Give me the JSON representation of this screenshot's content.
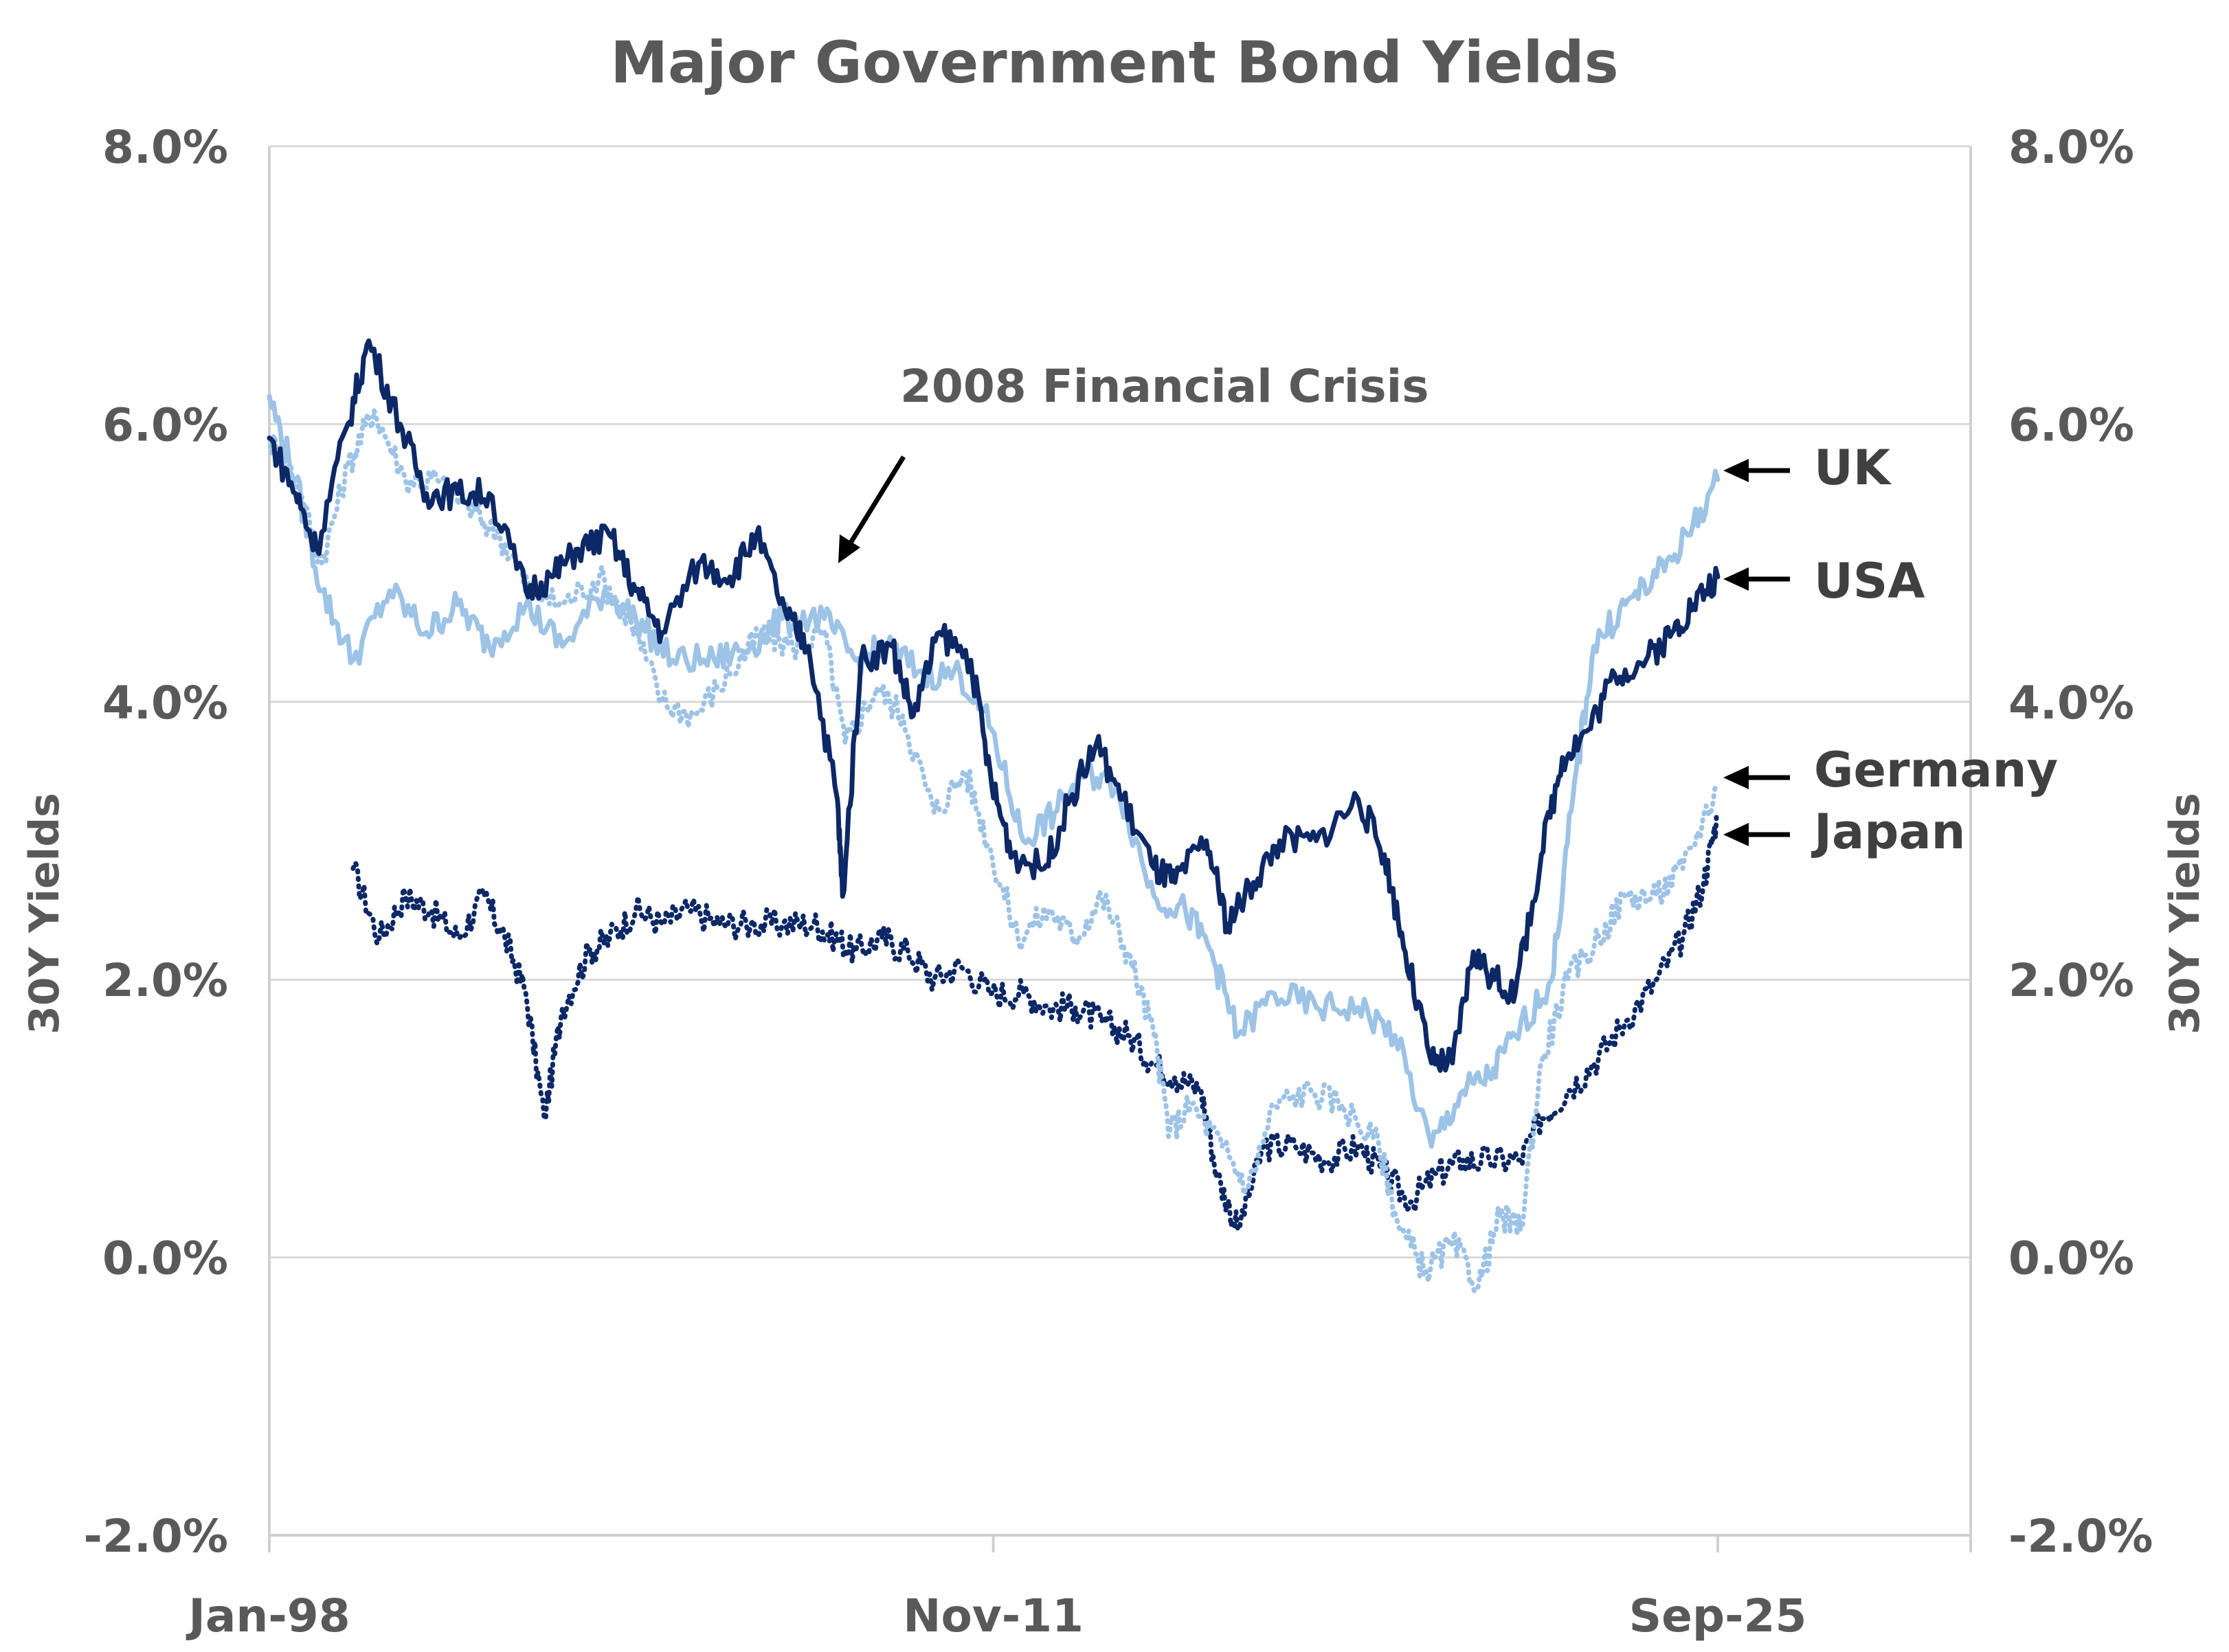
{
  "chart_data": {
    "type": "line",
    "title": "Major Government Bond Yields",
    "ylabel_left": "30Y  Yields",
    "ylabel_right": "30Y  Yields",
    "ylim": [
      -2.0,
      8.0
    ],
    "yticks": [
      "-2.0%",
      "0.0%",
      "2.0%",
      "4.0%",
      "6.0%",
      "8.0%"
    ],
    "xtick_labels": [
      "Jan-98",
      "Nov-11",
      "Sep-25"
    ],
    "xtick_values": [
      1998.0,
      2011.83,
      2025.67
    ],
    "xlim": [
      1998.0,
      2030.5
    ],
    "annotation": "2008 Financial Crisis",
    "series": [
      {
        "name": "UK",
        "style": "solid",
        "color": "#9dc3e6",
        "points": [
          [
            1998.0,
            6.2
          ],
          [
            1998.5,
            5.6
          ],
          [
            1999.0,
            4.8
          ],
          [
            1999.6,
            4.3
          ],
          [
            2000.3,
            4.8
          ],
          [
            2001.0,
            4.5
          ],
          [
            2001.6,
            4.7
          ],
          [
            2002.2,
            4.4
          ],
          [
            2002.9,
            4.7
          ],
          [
            2003.6,
            4.4
          ],
          [
            2004.4,
            4.8
          ],
          [
            2005.0,
            4.6
          ],
          [
            2005.7,
            4.3
          ],
          [
            2006.5,
            4.3
          ],
          [
            2007.2,
            4.4
          ],
          [
            2007.8,
            4.6
          ],
          [
            2008.6,
            4.6
          ],
          [
            2009.2,
            4.3
          ],
          [
            2009.8,
            4.4
          ],
          [
            2010.5,
            4.2
          ],
          [
            2011.2,
            4.2
          ],
          [
            2011.8,
            3.8
          ],
          [
            2012.4,
            3.0
          ],
          [
            2013.0,
            3.2
          ],
          [
            2013.6,
            3.5
          ],
          [
            2014.2,
            3.4
          ],
          [
            2014.9,
            2.6
          ],
          [
            2015.5,
            2.5
          ],
          [
            2016.0,
            2.2
          ],
          [
            2016.5,
            1.6
          ],
          [
            2017.2,
            1.9
          ],
          [
            2018.0,
            1.8
          ],
          [
            2018.8,
            1.8
          ],
          [
            2019.5,
            1.6
          ],
          [
            2020.2,
            0.8
          ],
          [
            2020.8,
            1.2
          ],
          [
            2021.3,
            1.3
          ],
          [
            2021.8,
            1.6
          ],
          [
            2022.5,
            2.0
          ],
          [
            2022.9,
            3.3
          ],
          [
            2023.3,
            4.4
          ],
          [
            2023.9,
            4.7
          ],
          [
            2024.5,
            4.9
          ],
          [
            2025.1,
            5.2
          ],
          [
            2025.67,
            5.6
          ]
        ]
      },
      {
        "name": "USA",
        "style": "solid",
        "color": "#0d2866",
        "points": [
          [
            1998.0,
            5.9
          ],
          [
            1998.5,
            5.5
          ],
          [
            1998.9,
            5.1
          ],
          [
            1999.5,
            6.0
          ],
          [
            1999.9,
            6.6
          ],
          [
            2000.5,
            6.0
          ],
          [
            2001.0,
            5.5
          ],
          [
            2001.6,
            5.5
          ],
          [
            2002.2,
            5.5
          ],
          [
            2002.9,
            4.8
          ],
          [
            2003.4,
            4.9
          ],
          [
            2003.9,
            5.1
          ],
          [
            2004.5,
            5.2
          ],
          [
            2005.0,
            4.8
          ],
          [
            2005.5,
            4.5
          ],
          [
            2006.2,
            5.0
          ],
          [
            2006.8,
            4.9
          ],
          [
            2007.3,
            5.2
          ],
          [
            2007.9,
            4.6
          ],
          [
            2008.3,
            4.4
          ],
          [
            2008.85,
            3.3
          ],
          [
            2008.95,
            2.6
          ],
          [
            2009.3,
            4.3
          ],
          [
            2009.9,
            4.4
          ],
          [
            2010.3,
            3.9
          ],
          [
            2010.8,
            4.5
          ],
          [
            2011.4,
            4.3
          ],
          [
            2011.8,
            3.4
          ],
          [
            2012.2,
            2.9
          ],
          [
            2012.8,
            2.8
          ],
          [
            2013.3,
            3.3
          ],
          [
            2013.8,
            3.7
          ],
          [
            2014.3,
            3.3
          ],
          [
            2014.9,
            2.8
          ],
          [
            2015.3,
            2.7
          ],
          [
            2015.9,
            3.0
          ],
          [
            2016.3,
            2.4
          ],
          [
            2016.8,
            2.7
          ],
          [
            2017.3,
            3.0
          ],
          [
            2018.0,
            3.0
          ],
          [
            2018.8,
            3.3
          ],
          [
            2019.3,
            2.9
          ],
          [
            2019.7,
            2.2
          ],
          [
            2020.2,
            1.4
          ],
          [
            2020.6,
            1.4
          ],
          [
            2021.0,
            2.2
          ],
          [
            2021.4,
            2.0
          ],
          [
            2021.8,
            1.9
          ],
          [
            2022.3,
            2.9
          ],
          [
            2022.7,
            3.6
          ],
          [
            2023.2,
            3.8
          ],
          [
            2023.7,
            4.2
          ],
          [
            2024.3,
            4.3
          ],
          [
            2024.8,
            4.5
          ],
          [
            2025.2,
            4.7
          ],
          [
            2025.67,
            4.9
          ]
        ]
      },
      {
        "name": "Germany",
        "style": "dotted",
        "color": "#9dc3e6",
        "points": [
          [
            1998.0,
            5.9
          ],
          [
            1998.5,
            5.6
          ],
          [
            1999.0,
            5.0
          ],
          [
            1999.5,
            5.7
          ],
          [
            2000.0,
            6.1
          ],
          [
            2000.6,
            5.6
          ],
          [
            2001.2,
            5.6
          ],
          [
            2001.8,
            5.4
          ],
          [
            2002.4,
            5.2
          ],
          [
            2003.0,
            4.8
          ],
          [
            2003.6,
            4.7
          ],
          [
            2004.3,
            4.9
          ],
          [
            2004.9,
            4.6
          ],
          [
            2005.5,
            4.0
          ],
          [
            2006.1,
            3.9
          ],
          [
            2006.8,
            4.2
          ],
          [
            2007.4,
            4.5
          ],
          [
            2008.0,
            4.4
          ],
          [
            2008.6,
            4.5
          ],
          [
            2009.0,
            3.7
          ],
          [
            2009.6,
            4.1
          ],
          [
            2010.1,
            3.9
          ],
          [
            2010.7,
            3.2
          ],
          [
            2011.3,
            3.5
          ],
          [
            2011.8,
            2.9
          ],
          [
            2012.3,
            2.3
          ],
          [
            2012.9,
            2.5
          ],
          [
            2013.4,
            2.3
          ],
          [
            2013.9,
            2.6
          ],
          [
            2014.4,
            2.2
          ],
          [
            2014.9,
            1.6
          ],
          [
            2015.2,
            0.9
          ],
          [
            2015.6,
            1.1
          ],
          [
            2016.2,
            0.8
          ],
          [
            2016.7,
            0.5
          ],
          [
            2017.2,
            1.1
          ],
          [
            2017.9,
            1.2
          ],
          [
            2018.5,
            1.1
          ],
          [
            2019.2,
            0.8
          ],
          [
            2019.6,
            0.2
          ],
          [
            2020.1,
            -0.1
          ],
          [
            2020.6,
            0.1
          ],
          [
            2021.1,
            -0.2
          ],
          [
            2021.5,
            0.3
          ],
          [
            2021.9,
            0.2
          ],
          [
            2022.3,
            1.4
          ],
          [
            2022.8,
            2.0
          ],
          [
            2023.4,
            2.3
          ],
          [
            2023.9,
            2.6
          ],
          [
            2024.5,
            2.6
          ],
          [
            2025.0,
            2.8
          ],
          [
            2025.67,
            3.4
          ]
        ]
      },
      {
        "name": "Japan",
        "style": "dotted",
        "color": "#0d2866",
        "points": [
          [
            1999.6,
            2.8
          ],
          [
            2000.1,
            2.3
          ],
          [
            2000.6,
            2.6
          ],
          [
            2001.1,
            2.5
          ],
          [
            2001.6,
            2.3
          ],
          [
            2002.1,
            2.6
          ],
          [
            2002.5,
            2.3
          ],
          [
            2002.9,
            1.9
          ],
          [
            2003.25,
            1.0
          ],
          [
            2003.6,
            1.8
          ],
          [
            2004.1,
            2.2
          ],
          [
            2004.5,
            2.3
          ],
          [
            2005.0,
            2.5
          ],
          [
            2005.5,
            2.4
          ],
          [
            2006.0,
            2.5
          ],
          [
            2006.6,
            2.4
          ],
          [
            2007.2,
            2.4
          ],
          [
            2007.8,
            2.4
          ],
          [
            2008.4,
            2.4
          ],
          [
            2008.8,
            2.3
          ],
          [
            2009.2,
            2.2
          ],
          [
            2009.7,
            2.3
          ],
          [
            2010.2,
            2.2
          ],
          [
            2010.7,
            2.0
          ],
          [
            2011.2,
            2.1
          ],
          [
            2011.8,
            1.9
          ],
          [
            2012.4,
            1.9
          ],
          [
            2012.9,
            1.8
          ],
          [
            2013.4,
            1.8
          ],
          [
            2013.9,
            1.7
          ],
          [
            2014.4,
            1.6
          ],
          [
            2014.9,
            1.4
          ],
          [
            2015.3,
            1.3
          ],
          [
            2015.8,
            1.2
          ],
          [
            2016.1,
            0.6
          ],
          [
            2016.5,
            0.2
          ],
          [
            2017.0,
            0.8
          ],
          [
            2017.6,
            0.8
          ],
          [
            2018.2,
            0.7
          ],
          [
            2018.8,
            0.8
          ],
          [
            2019.3,
            0.6
          ],
          [
            2019.8,
            0.4
          ],
          [
            2020.3,
            0.6
          ],
          [
            2020.8,
            0.7
          ],
          [
            2021.3,
            0.7
          ],
          [
            2021.9,
            0.7
          ],
          [
            2022.3,
            1.0
          ],
          [
            2022.8,
            1.2
          ],
          [
            2023.3,
            1.4
          ],
          [
            2023.9,
            1.7
          ],
          [
            2024.5,
            2.0
          ],
          [
            2025.0,
            2.3
          ],
          [
            2025.4,
            2.7
          ],
          [
            2025.67,
            3.2
          ]
        ]
      }
    ]
  }
}
